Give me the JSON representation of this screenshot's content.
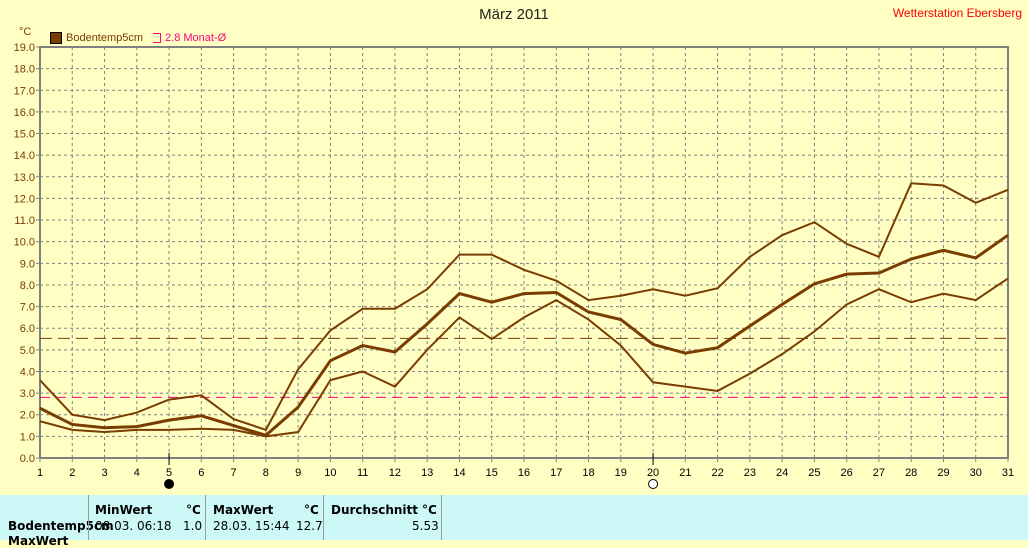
{
  "title": "März 2011",
  "station": "Wetterstation Ebersberg",
  "unit_label": "°C",
  "legend": {
    "series": "Bodentemp5cm",
    "reference": "2.8 Monat-Ø"
  },
  "colors": {
    "series": "#7a3c00",
    "reference": "#ff0080",
    "grid": "#808080",
    "axis": "#808080"
  },
  "moon_icons": [
    {
      "day": 5,
      "icon": "new-moon-icon"
    },
    {
      "day": 20,
      "icon": "full-moon-icon"
    }
  ],
  "chart_data": {
    "type": "line",
    "title": "März 2011",
    "ylabel": "°C",
    "ylim": [
      0,
      19
    ],
    "yticks": [
      "0.0",
      "1.0",
      "2.0",
      "3.0",
      "4.0",
      "5.0",
      "6.0",
      "7.0",
      "8.0",
      "9.0",
      "10.0",
      "11.0",
      "12.0",
      "13.0",
      "14.0",
      "15.0",
      "16.0",
      "17.0",
      "18.0",
      "19.0"
    ],
    "x": [
      1,
      2,
      3,
      4,
      5,
      6,
      7,
      8,
      9,
      10,
      11,
      12,
      13,
      14,
      15,
      16,
      17,
      18,
      19,
      20,
      21,
      22,
      23,
      24,
      25,
      26,
      27,
      28,
      29,
      30,
      31
    ],
    "grid": true,
    "legend_position": "top-left",
    "series": [
      {
        "name": "Bodentemp5cm max",
        "values": [
          3.6,
          2.0,
          1.75,
          2.1,
          2.7,
          2.9,
          1.8,
          1.3,
          4.1,
          5.9,
          6.9,
          6.9,
          7.8,
          9.4,
          9.4,
          8.7,
          8.2,
          7.3,
          7.5,
          7.8,
          7.5,
          7.85,
          9.3,
          10.3,
          10.9,
          9.9,
          9.3,
          12.7,
          12.6,
          11.8,
          12.4
        ]
      },
      {
        "name": "Bodentemp5cm",
        "values": [
          2.3,
          1.55,
          1.4,
          1.45,
          1.75,
          1.95,
          1.5,
          1.05,
          2.35,
          4.5,
          5.2,
          4.9,
          6.2,
          7.6,
          7.2,
          7.6,
          7.65,
          6.75,
          6.4,
          5.25,
          4.85,
          5.1,
          6.1,
          7.1,
          8.05,
          8.5,
          8.55,
          9.2,
          9.6,
          9.25,
          10.3
        ]
      },
      {
        "name": "Bodentemp5cm min",
        "values": [
          1.7,
          1.3,
          1.2,
          1.3,
          1.3,
          1.35,
          1.3,
          1.0,
          1.2,
          3.6,
          4.0,
          3.3,
          5.0,
          6.5,
          5.5,
          6.5,
          7.3,
          6.4,
          5.2,
          3.5,
          3.3,
          3.1,
          3.9,
          4.8,
          5.85,
          7.1,
          7.8,
          7.2,
          7.6,
          7.3,
          8.3
        ]
      }
    ],
    "reference_lines": [
      {
        "name": "Durchschnitt",
        "value": 5.53
      },
      {
        "name": "2.8 Monat-Ø",
        "value": 2.8
      }
    ]
  },
  "stats": {
    "row_label": "Bodentemp5cm",
    "row2_label": "MaxWert",
    "min_header": "MinWert",
    "max_header": "MaxWert",
    "avg_header": "Durchschnitt",
    "unit": "°C",
    "min_time": "08.03.  06:18",
    "min_value": "1.0",
    "max_time": "28.03.  15:44",
    "max_value": "12.7",
    "avg_value": "5.53"
  }
}
